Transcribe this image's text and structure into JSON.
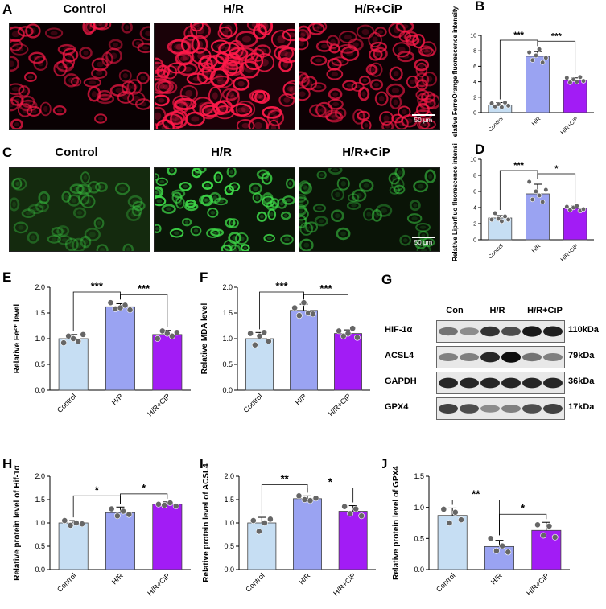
{
  "panels": {
    "A": {
      "letter": "A",
      "labels": [
        "Control",
        "H/R",
        "H/R+CiP"
      ],
      "scale": "50 μm"
    },
    "C": {
      "letter": "C",
      "labels": [
        "Control",
        "H/R",
        "H/R+CiP"
      ],
      "scale": "50 μm"
    }
  },
  "wb": {
    "letter": "G",
    "columns": [
      "Con",
      "H/R",
      "H/R+CiP"
    ],
    "rows": [
      {
        "name": "HIF-1α",
        "kda": "110kDa",
        "intensity": [
          0.55,
          0.45,
          0.8,
          0.7,
          0.9,
          0.88
        ]
      },
      {
        "name": "ACSL4",
        "kda": "79kDa",
        "intensity": [
          0.5,
          0.5,
          0.85,
          0.95,
          0.55,
          0.5
        ]
      },
      {
        "name": "GAPDH",
        "kda": "36kDa",
        "intensity": [
          0.85,
          0.85,
          0.85,
          0.85,
          0.85,
          0.85
        ]
      },
      {
        "name": "GPX4",
        "kda": "17kDa",
        "intensity": [
          0.75,
          0.7,
          0.45,
          0.5,
          0.7,
          0.75
        ]
      }
    ]
  },
  "chart_data": [
    {
      "id": "B",
      "type": "bar",
      "categories": [
        "Control",
        "H/R",
        "H/R+CiP"
      ],
      "values": [
        1.0,
        7.3,
        4.2
      ],
      "errors": [
        0.3,
        0.6,
        0.3
      ],
      "points": [
        [
          1.2,
          0.8,
          1.1,
          0.7,
          1.3,
          0.9
        ],
        [
          7.8,
          6.8,
          7.4,
          8.2,
          6.5,
          7.1
        ],
        [
          4.5,
          3.9,
          4.3,
          4.0,
          4.6,
          4.1
        ]
      ],
      "ylabel": "Relative FerroOrange fluorescence intensity",
      "ylim": [
        0,
        10
      ],
      "yticks": [
        0,
        2,
        4,
        6,
        8,
        10
      ],
      "sig": [
        {
          "from": 0,
          "to": 1,
          "label": "***"
        },
        {
          "from": 1,
          "to": 2,
          "label": "***"
        }
      ]
    },
    {
      "id": "D",
      "type": "bar",
      "categories": [
        "Control",
        "H/R",
        "H/R+CiP"
      ],
      "values": [
        2.7,
        5.7,
        3.9
      ],
      "errors": [
        0.3,
        1.2,
        0.3
      ],
      "points": [
        [
          2.5,
          3.3,
          2.6,
          2.3,
          2.9,
          2.5
        ],
        [
          7.2,
          5.0,
          6.0,
          5.5,
          4.7,
          6.2
        ],
        [
          4.1,
          3.7,
          4.0,
          4.2,
          3.6,
          3.8
        ]
      ],
      "ylabel": "Relative Liperfluo fluorescence intensity",
      "ylim": [
        0,
        10
      ],
      "yticks": [
        0,
        2,
        4,
        6,
        8,
        10
      ],
      "sig": [
        {
          "from": 0,
          "to": 1,
          "label": "***"
        },
        {
          "from": 1,
          "to": 2,
          "label": "*"
        }
      ]
    },
    {
      "id": "E",
      "type": "bar",
      "categories": [
        "Control",
        "H/R",
        "H/R+CiP"
      ],
      "values": [
        1.0,
        1.62,
        1.08
      ],
      "errors": [
        0.08,
        0.06,
        0.08
      ],
      "points": [
        [
          0.92,
          1.05,
          1.0,
          0.95,
          1.08
        ],
        [
          1.7,
          1.58,
          1.6,
          1.65,
          1.56
        ],
        [
          1.0,
          1.15,
          1.1,
          1.05,
          1.12
        ]
      ],
      "ylabel": "Relative Fe²⁺ level",
      "ylim": [
        0,
        2.0
      ],
      "yticks": [
        0.0,
        0.5,
        1.0,
        1.5,
        2.0
      ],
      "sig": [
        {
          "from": 0,
          "to": 1,
          "label": "***"
        },
        {
          "from": 1,
          "to": 2,
          "label": "***"
        }
      ]
    },
    {
      "id": "F",
      "type": "bar",
      "categories": [
        "Control",
        "H/R",
        "H/R+CiP"
      ],
      "values": [
        1.0,
        1.55,
        1.1
      ],
      "errors": [
        0.12,
        0.12,
        0.07
      ],
      "points": [
        [
          1.1,
          0.88,
          1.05,
          1.12,
          0.95
        ],
        [
          1.6,
          1.45,
          1.7,
          1.5,
          1.48
        ],
        [
          1.15,
          1.05,
          1.1,
          1.2,
          1.02
        ]
      ],
      "ylabel": "Relative MDA level",
      "ylim": [
        0,
        2.0
      ],
      "yticks": [
        0.0,
        0.5,
        1.0,
        1.5,
        2.0
      ],
      "sig": [
        {
          "from": 0,
          "to": 1,
          "label": "***"
        },
        {
          "from": 1,
          "to": 2,
          "label": "***"
        }
      ]
    },
    {
      "id": "H",
      "type": "bar",
      "categories": [
        "Control",
        "H/R",
        "H/R+CiP"
      ],
      "values": [
        1.0,
        1.22,
        1.4
      ],
      "errors": [
        0.05,
        0.12,
        0.05
      ],
      "points": [
        [
          1.05,
          0.95,
          1.0,
          0.98
        ],
        [
          1.3,
          1.15,
          1.25,
          1.18
        ],
        [
          1.4,
          1.38,
          1.43,
          1.36
        ]
      ],
      "ylabel": "Relative protein level of Hif-1α",
      "ylim": [
        0,
        2.0
      ],
      "yticks": [
        0.0,
        0.5,
        1.0,
        1.5,
        2.0
      ],
      "sig": [
        {
          "from": 0,
          "to": 1,
          "label": "*"
        },
        {
          "from": 1,
          "to": 2,
          "label": "*"
        }
      ]
    },
    {
      "id": "I",
      "type": "bar",
      "categories": [
        "Control",
        "H/R",
        "H/R+CiP"
      ],
      "values": [
        1.0,
        1.52,
        1.25
      ],
      "errors": [
        0.12,
        0.06,
        0.12
      ],
      "points": [
        [
          1.05,
          0.82,
          1.0,
          1.08
        ],
        [
          1.58,
          1.5,
          1.48,
          1.53
        ],
        [
          1.35,
          1.2,
          1.3,
          1.15
        ]
      ],
      "ylabel": "Relative protein level of ACSL4",
      "ylim": [
        0,
        2.0
      ],
      "yticks": [
        0.0,
        0.5,
        1.0,
        1.5,
        2.0
      ],
      "sig": [
        {
          "from": 0,
          "to": 1,
          "label": "**"
        },
        {
          "from": 1,
          "to": 2,
          "label": "*"
        }
      ]
    },
    {
      "id": "J",
      "type": "bar",
      "categories": [
        "Control",
        "H/R",
        "H/R+CiP"
      ],
      "values": [
        0.87,
        0.37,
        0.63
      ],
      "errors": [
        0.12,
        0.1,
        0.13
      ],
      "points": [
        [
          0.97,
          0.75,
          0.92,
          0.8
        ],
        [
          0.5,
          0.3,
          0.38,
          0.28
        ],
        [
          0.72,
          0.55,
          0.7,
          0.52
        ]
      ],
      "ylabel": "Relative protein level of GPX4",
      "ylim": [
        0,
        1.5
      ],
      "yticks": [
        0.0,
        0.5,
        1.0,
        1.5
      ],
      "sig": [
        {
          "from": 0,
          "to": 1,
          "label": "**"
        },
        {
          "from": 1,
          "to": 2,
          "label": "*"
        }
      ]
    }
  ],
  "colors": {
    "control": "#c6def3",
    "hr": "#9aa3f2",
    "cip": "#a21cf5",
    "red_cell": "#ff1a4a",
    "green_cell": "#3fdc4a"
  }
}
